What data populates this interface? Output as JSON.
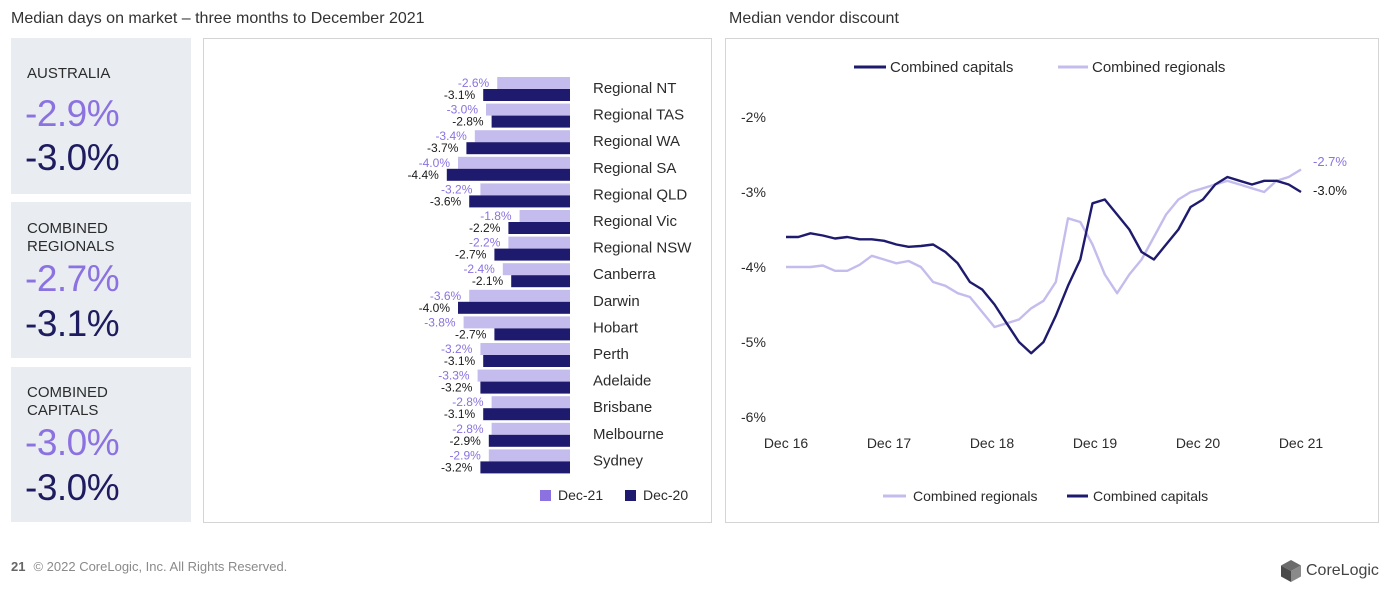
{
  "left_title": "Median days on market – three months to December 2021",
  "right_title": "Median vendor discount",
  "stats": [
    {
      "label": "AUSTRALIA",
      "v1": "-2.9%",
      "v2": "-3.0%"
    },
    {
      "label": "COMBINED REGIONALS",
      "v1": "-2.7%",
      "v2": "-3.1%"
    },
    {
      "label": "COMBINED CAPITALS",
      "v1": "-3.0%",
      "v2": "-3.0%"
    }
  ],
  "footer": {
    "page": "21",
    "text": "© 2022 CoreLogic, Inc. All Rights Reserved."
  },
  "logo_text": "CoreLogic",
  "colors": {
    "light": "#c5bcee",
    "dark": "#1e1b6e",
    "light_text": "#8b72e0",
    "stat_bg": "#e9edf2"
  },
  "chart_data": [
    {
      "type": "bar",
      "orientation": "horizontal",
      "categories": [
        "Regional NT",
        "Regional TAS",
        "Regional WA",
        "Regional SA",
        "Regional QLD",
        "Regional Vic",
        "Regional NSW",
        "Canberra",
        "Darwin",
        "Hobart",
        "Perth",
        "Adelaide",
        "Brisbane",
        "Melbourne",
        "Sydney"
      ],
      "series": [
        {
          "name": "Dec-21",
          "values": [
            -2.6,
            -3.0,
            -3.4,
            -4.0,
            -3.2,
            -1.8,
            -2.2,
            -2.4,
            -3.6,
            -3.8,
            -3.2,
            -3.3,
            -2.8,
            -2.8,
            -2.9
          ]
        },
        {
          "name": "Dec-20",
          "values": [
            -3.1,
            -2.8,
            -3.7,
            -4.4,
            -3.6,
            -2.2,
            -2.7,
            -2.1,
            -4.0,
            -2.7,
            -3.1,
            -3.2,
            -3.1,
            -2.9,
            -3.2
          ]
        }
      ],
      "legend": "bottom-right"
    },
    {
      "type": "line",
      "xticks": [
        "Dec 16",
        "Dec 17",
        "Dec 18",
        "Dec 19",
        "Dec 20",
        "Dec 21"
      ],
      "yticks": [
        "-2%",
        "-3%",
        "-4%",
        "-5%",
        "-6%"
      ],
      "ylim": [
        -6,
        -1.6
      ],
      "legend": "top and bottom",
      "end_labels": {
        "Combined regionals": "-2.7%",
        "Combined capitals": "-3.0%"
      },
      "series": [
        {
          "name": "Combined capitals",
          "values": [
            -3.6,
            -3.6,
            -3.55,
            -3.58,
            -3.62,
            -3.6,
            -3.63,
            -3.63,
            -3.65,
            -3.7,
            -3.73,
            -3.72,
            -3.7,
            -3.8,
            -3.95,
            -4.2,
            -4.3,
            -4.5,
            -4.75,
            -5.0,
            -5.15,
            -5.0,
            -4.65,
            -4.25,
            -3.9,
            -3.15,
            -3.1,
            -3.3,
            -3.5,
            -3.8,
            -3.9,
            -3.7,
            -3.5,
            -3.2,
            -3.1,
            -2.9,
            -2.8,
            -2.85,
            -2.9,
            -2.85,
            -2.85,
            -2.9,
            -3.0
          ]
        },
        {
          "name": "Combined regionals",
          "values": [
            -4.0,
            -4.0,
            -4.0,
            -3.98,
            -4.05,
            -4.05,
            -3.97,
            -3.85,
            -3.9,
            -3.95,
            -3.92,
            -4.0,
            -4.2,
            -4.25,
            -4.35,
            -4.4,
            -4.6,
            -4.8,
            -4.75,
            -4.7,
            -4.55,
            -4.45,
            -4.2,
            -3.35,
            -3.4,
            -3.7,
            -4.1,
            -4.35,
            -4.1,
            -3.9,
            -3.6,
            -3.3,
            -3.1,
            -3.0,
            -2.95,
            -2.9,
            -2.85,
            -2.9,
            -2.95,
            -3.0,
            -2.85,
            -2.8,
            -2.7
          ]
        }
      ]
    }
  ]
}
